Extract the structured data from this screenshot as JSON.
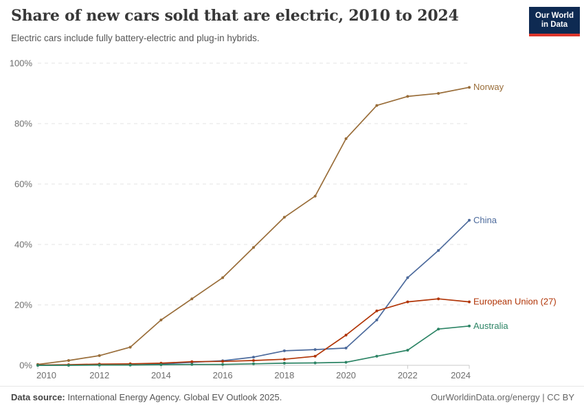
{
  "header": {
    "title": "Share of new cars sold that are electric, 2010 to 2024",
    "subtitle": "Electric cars include fully battery-electric and plug-in hybrids.",
    "logo": {
      "line1": "Our World",
      "line2": "in Data",
      "bg_color": "#0E2A52",
      "accent_color": "#DC352B"
    }
  },
  "chart_data": {
    "type": "line",
    "title": "Share of new cars sold that are electric, 2010 to 2024",
    "subtitle": "Electric cars include fully battery-electric and plug-in hybrids.",
    "xlabel": "",
    "ylabel": "",
    "x": [
      2010,
      2011,
      2012,
      2013,
      2014,
      2015,
      2016,
      2017,
      2018,
      2019,
      2020,
      2021,
      2022,
      2023,
      2024
    ],
    "xlim": [
      2010,
      2024
    ],
    "ylim": [
      0,
      100
    ],
    "grid": true,
    "gridline_color": "#e3e3e3",
    "axis_color": "#c8c8c8",
    "tick_text_color": "#6e6e6e",
    "legend_position": "right-end-labels",
    "y_ticks": [
      {
        "value": 0,
        "label": "0%"
      },
      {
        "value": 20,
        "label": "20%"
      },
      {
        "value": 40,
        "label": "40%"
      },
      {
        "value": 60,
        "label": "60%"
      },
      {
        "value": 80,
        "label": "80%"
      },
      {
        "value": 100,
        "label": "100%"
      }
    ],
    "x_ticks": [
      {
        "value": 2010,
        "label": "2010"
      },
      {
        "value": 2012,
        "label": "2012"
      },
      {
        "value": 2014,
        "label": "2014"
      },
      {
        "value": 2016,
        "label": "2016"
      },
      {
        "value": 2018,
        "label": "2018"
      },
      {
        "value": 2020,
        "label": "2020"
      },
      {
        "value": 2022,
        "label": "2022"
      },
      {
        "value": 2024,
        "label": "2024"
      }
    ],
    "series": [
      {
        "name": "Norway",
        "color": "#996D39",
        "values": [
          0.3,
          1.6,
          3.2,
          6,
          15,
          22,
          29,
          39,
          49,
          56,
          75,
          86,
          89,
          90,
          92
        ]
      },
      {
        "name": "China",
        "color": "#4C6A9C",
        "values": [
          0,
          0.1,
          0.1,
          0.1,
          0.4,
          1,
          1.5,
          2.7,
          4.8,
          5.2,
          5.7,
          15,
          29,
          38,
          48
        ]
      },
      {
        "name": "European Union (27)",
        "color": "#B13507",
        "values": [
          0.1,
          0.2,
          0.4,
          0.5,
          0.7,
          1.2,
          1.3,
          1.6,
          2,
          3,
          10,
          18,
          21,
          22,
          21
        ]
      },
      {
        "name": "Australia",
        "color": "#2C8465",
        "values": [
          0,
          0,
          0.1,
          0.1,
          0.2,
          0.3,
          0.3,
          0.5,
          0.7,
          0.8,
          1,
          3,
          5,
          12,
          13
        ]
      }
    ]
  },
  "footer": {
    "source_label": "Data source:",
    "source_text": "International Energy Agency. Global EV Outlook 2025.",
    "credit": "OurWorldinData.org/energy | CC BY"
  }
}
